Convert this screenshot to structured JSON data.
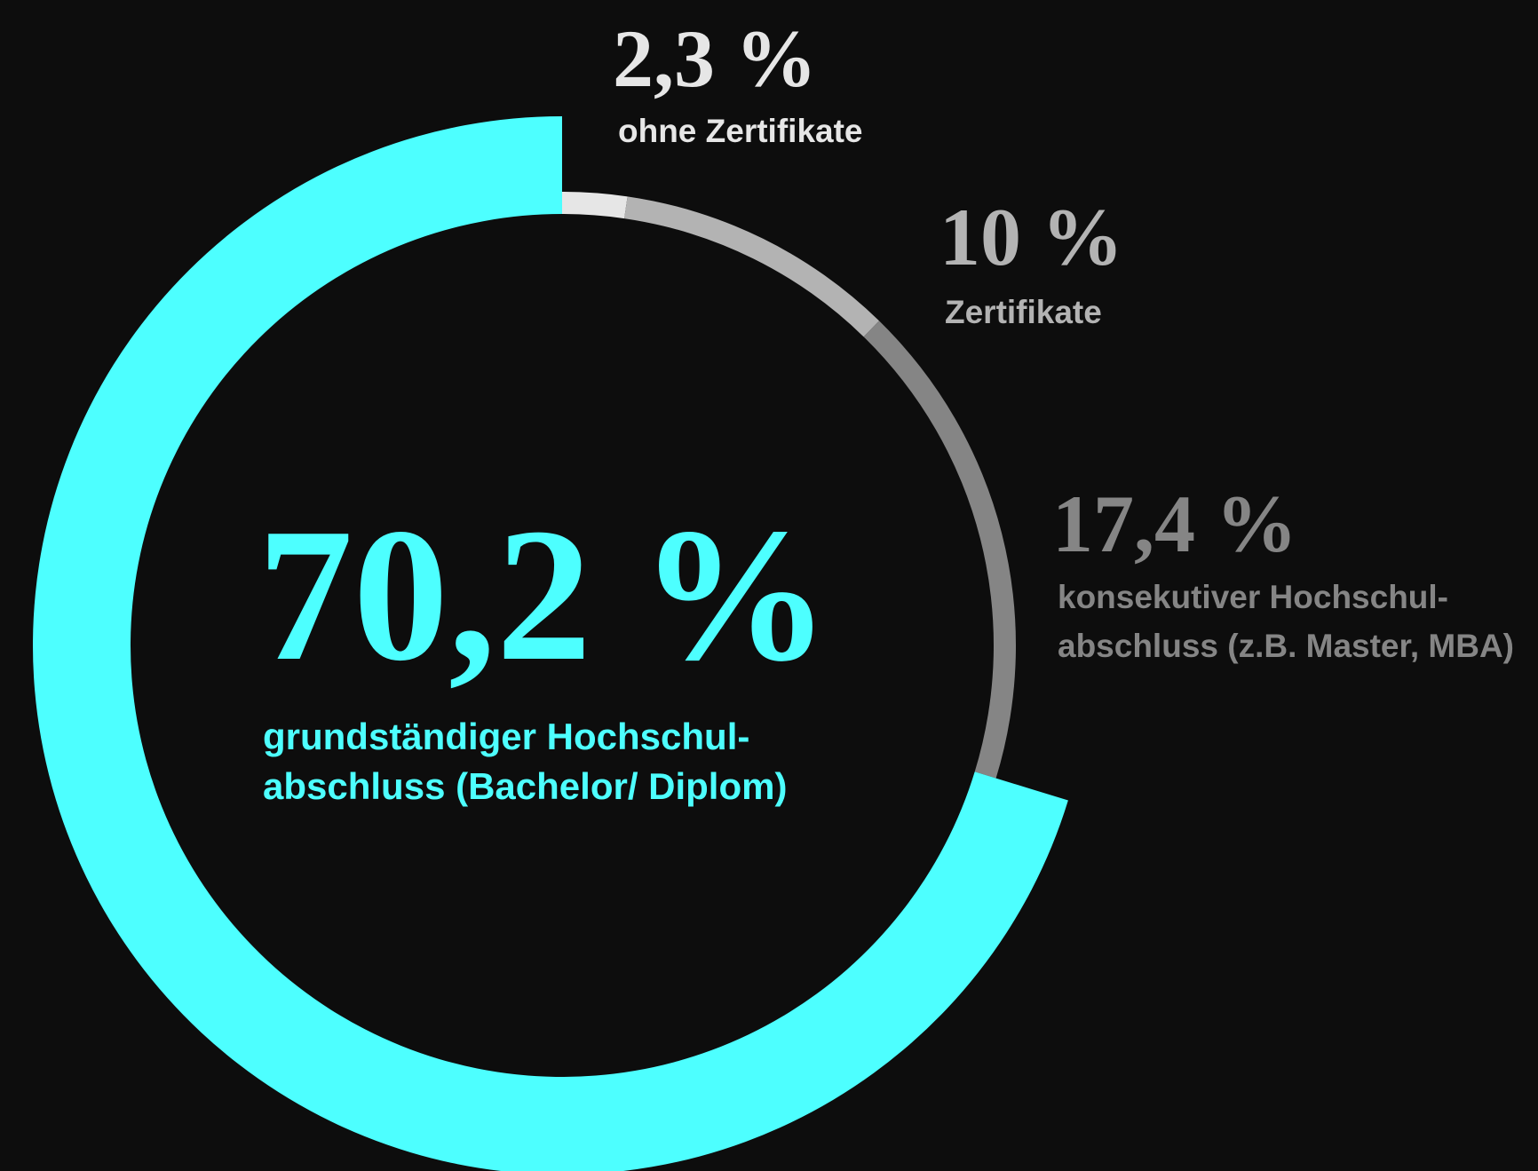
{
  "chart_data": {
    "type": "donut",
    "categories": [
      "ohne Zertifikate",
      "Zertifikate",
      "konsekutiver Hochschul-\nabschluss (z.B. Master, MBA)",
      "grundständiger Hochschul-\nabschluss (Bachelor/ Diplom)"
    ],
    "values": [
      2.3,
      10,
      17.4,
      70.2
    ],
    "value_labels": [
      "2,3 %",
      "10 %",
      "17,4 %",
      "70,2 %"
    ],
    "colors": [
      "#e6e6e6",
      "#b3b3b3",
      "#858585",
      "#4dffff"
    ]
  }
}
